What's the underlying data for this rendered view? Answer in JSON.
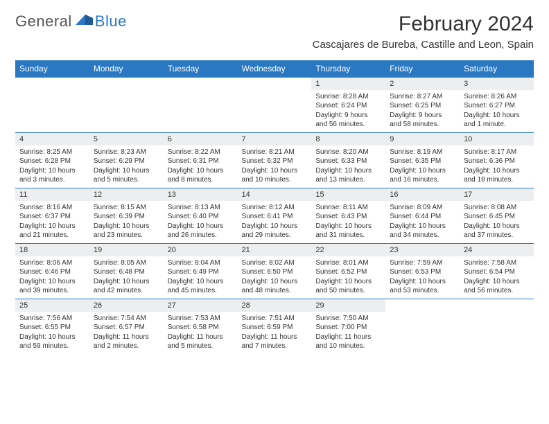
{
  "logo": {
    "general": "General",
    "blue": "Blue"
  },
  "title": "February 2024",
  "location": "Cascajares de Bureba, Castille and Leon, Spain",
  "colors": {
    "header_bg": "#2b78c2",
    "header_fg": "#ffffff",
    "daynum_bg": "#eceeef",
    "border": "#2b78c2"
  },
  "weekdays": [
    "Sunday",
    "Monday",
    "Tuesday",
    "Wednesday",
    "Thursday",
    "Friday",
    "Saturday"
  ],
  "weeks": [
    [
      null,
      null,
      null,
      null,
      {
        "n": "1",
        "sr": "Sunrise: 8:28 AM",
        "ss": "Sunset: 6:24 PM",
        "d1": "Daylight: 9 hours",
        "d2": "and 56 minutes."
      },
      {
        "n": "2",
        "sr": "Sunrise: 8:27 AM",
        "ss": "Sunset: 6:25 PM",
        "d1": "Daylight: 9 hours",
        "d2": "and 58 minutes."
      },
      {
        "n": "3",
        "sr": "Sunrise: 8:26 AM",
        "ss": "Sunset: 6:27 PM",
        "d1": "Daylight: 10 hours",
        "d2": "and 1 minute."
      }
    ],
    [
      {
        "n": "4",
        "sr": "Sunrise: 8:25 AM",
        "ss": "Sunset: 6:28 PM",
        "d1": "Daylight: 10 hours",
        "d2": "and 3 minutes."
      },
      {
        "n": "5",
        "sr": "Sunrise: 8:23 AM",
        "ss": "Sunset: 6:29 PM",
        "d1": "Daylight: 10 hours",
        "d2": "and 5 minutes."
      },
      {
        "n": "6",
        "sr": "Sunrise: 8:22 AM",
        "ss": "Sunset: 6:31 PM",
        "d1": "Daylight: 10 hours",
        "d2": "and 8 minutes."
      },
      {
        "n": "7",
        "sr": "Sunrise: 8:21 AM",
        "ss": "Sunset: 6:32 PM",
        "d1": "Daylight: 10 hours",
        "d2": "and 10 minutes."
      },
      {
        "n": "8",
        "sr": "Sunrise: 8:20 AM",
        "ss": "Sunset: 6:33 PM",
        "d1": "Daylight: 10 hours",
        "d2": "and 13 minutes."
      },
      {
        "n": "9",
        "sr": "Sunrise: 8:19 AM",
        "ss": "Sunset: 6:35 PM",
        "d1": "Daylight: 10 hours",
        "d2": "and 16 minutes."
      },
      {
        "n": "10",
        "sr": "Sunrise: 8:17 AM",
        "ss": "Sunset: 6:36 PM",
        "d1": "Daylight: 10 hours",
        "d2": "and 18 minutes."
      }
    ],
    [
      {
        "n": "11",
        "sr": "Sunrise: 8:16 AM",
        "ss": "Sunset: 6:37 PM",
        "d1": "Daylight: 10 hours",
        "d2": "and 21 minutes."
      },
      {
        "n": "12",
        "sr": "Sunrise: 8:15 AM",
        "ss": "Sunset: 6:39 PM",
        "d1": "Daylight: 10 hours",
        "d2": "and 23 minutes."
      },
      {
        "n": "13",
        "sr": "Sunrise: 8:13 AM",
        "ss": "Sunset: 6:40 PM",
        "d1": "Daylight: 10 hours",
        "d2": "and 26 minutes."
      },
      {
        "n": "14",
        "sr": "Sunrise: 8:12 AM",
        "ss": "Sunset: 6:41 PM",
        "d1": "Daylight: 10 hours",
        "d2": "and 29 minutes."
      },
      {
        "n": "15",
        "sr": "Sunrise: 8:11 AM",
        "ss": "Sunset: 6:43 PM",
        "d1": "Daylight: 10 hours",
        "d2": "and 31 minutes."
      },
      {
        "n": "16",
        "sr": "Sunrise: 8:09 AM",
        "ss": "Sunset: 6:44 PM",
        "d1": "Daylight: 10 hours",
        "d2": "and 34 minutes."
      },
      {
        "n": "17",
        "sr": "Sunrise: 8:08 AM",
        "ss": "Sunset: 6:45 PM",
        "d1": "Daylight: 10 hours",
        "d2": "and 37 minutes."
      }
    ],
    [
      {
        "n": "18",
        "sr": "Sunrise: 8:06 AM",
        "ss": "Sunset: 6:46 PM",
        "d1": "Daylight: 10 hours",
        "d2": "and 39 minutes."
      },
      {
        "n": "19",
        "sr": "Sunrise: 8:05 AM",
        "ss": "Sunset: 6:48 PM",
        "d1": "Daylight: 10 hours",
        "d2": "and 42 minutes."
      },
      {
        "n": "20",
        "sr": "Sunrise: 8:04 AM",
        "ss": "Sunset: 6:49 PM",
        "d1": "Daylight: 10 hours",
        "d2": "and 45 minutes."
      },
      {
        "n": "21",
        "sr": "Sunrise: 8:02 AM",
        "ss": "Sunset: 6:50 PM",
        "d1": "Daylight: 10 hours",
        "d2": "and 48 minutes."
      },
      {
        "n": "22",
        "sr": "Sunrise: 8:01 AM",
        "ss": "Sunset: 6:52 PM",
        "d1": "Daylight: 10 hours",
        "d2": "and 50 minutes."
      },
      {
        "n": "23",
        "sr": "Sunrise: 7:59 AM",
        "ss": "Sunset: 6:53 PM",
        "d1": "Daylight: 10 hours",
        "d2": "and 53 minutes."
      },
      {
        "n": "24",
        "sr": "Sunrise: 7:58 AM",
        "ss": "Sunset: 6:54 PM",
        "d1": "Daylight: 10 hours",
        "d2": "and 56 minutes."
      }
    ],
    [
      {
        "n": "25",
        "sr": "Sunrise: 7:56 AM",
        "ss": "Sunset: 6:55 PM",
        "d1": "Daylight: 10 hours",
        "d2": "and 59 minutes."
      },
      {
        "n": "26",
        "sr": "Sunrise: 7:54 AM",
        "ss": "Sunset: 6:57 PM",
        "d1": "Daylight: 11 hours",
        "d2": "and 2 minutes."
      },
      {
        "n": "27",
        "sr": "Sunrise: 7:53 AM",
        "ss": "Sunset: 6:58 PM",
        "d1": "Daylight: 11 hours",
        "d2": "and 5 minutes."
      },
      {
        "n": "28",
        "sr": "Sunrise: 7:51 AM",
        "ss": "Sunset: 6:59 PM",
        "d1": "Daylight: 11 hours",
        "d2": "and 7 minutes."
      },
      {
        "n": "29",
        "sr": "Sunrise: 7:50 AM",
        "ss": "Sunset: 7:00 PM",
        "d1": "Daylight: 11 hours",
        "d2": "and 10 minutes."
      },
      null,
      null
    ]
  ]
}
